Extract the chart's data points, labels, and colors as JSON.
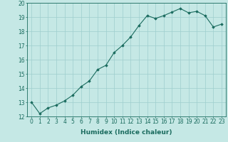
{
  "x": [
    0,
    1,
    2,
    3,
    4,
    5,
    6,
    7,
    8,
    9,
    10,
    11,
    12,
    13,
    14,
    15,
    16,
    17,
    18,
    19,
    20,
    21,
    22,
    23
  ],
  "y": [
    13.0,
    12.2,
    12.6,
    12.8,
    13.1,
    13.5,
    14.1,
    14.5,
    15.3,
    15.6,
    16.5,
    17.0,
    17.6,
    18.4,
    19.1,
    18.9,
    19.1,
    19.35,
    19.6,
    19.3,
    19.4,
    19.1,
    18.3,
    18.5
  ],
  "line_color": "#1a6b5e",
  "marker": "D",
  "marker_size": 1.8,
  "bg_color": "#c5e8e5",
  "grid_color": "#9ecece",
  "xlabel": "Humidex (Indice chaleur)",
  "xlabel_fontsize": 6.5,
  "tick_fontsize": 5.5,
  "ylim": [
    12,
    20
  ],
  "xlim": [
    -0.5,
    23.5
  ],
  "yticks": [
    12,
    13,
    14,
    15,
    16,
    17,
    18,
    19,
    20
  ],
  "xticks": [
    0,
    1,
    2,
    3,
    4,
    5,
    6,
    7,
    8,
    9,
    10,
    11,
    12,
    13,
    14,
    15,
    16,
    17,
    18,
    19,
    20,
    21,
    22,
    23
  ]
}
